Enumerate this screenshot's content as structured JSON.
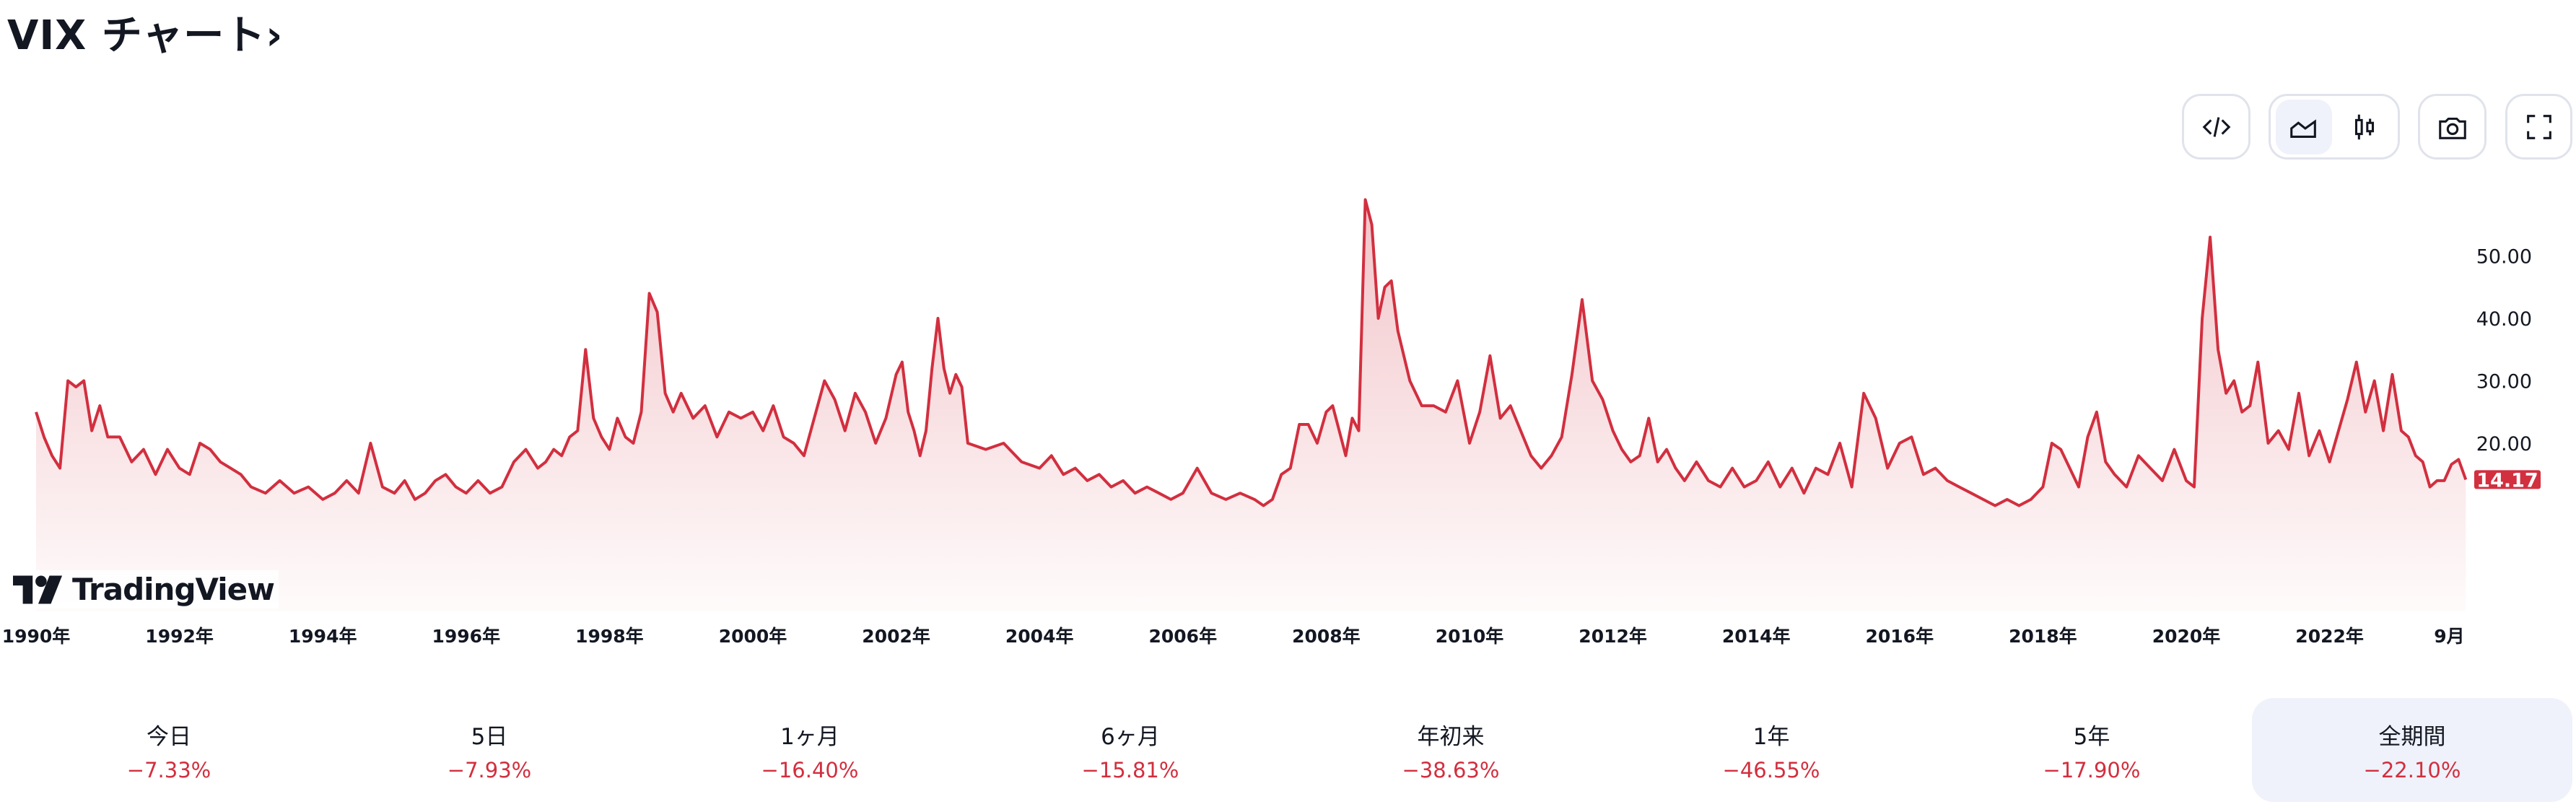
{
  "header": {
    "title": "VIX チャート›"
  },
  "toolbar": {
    "buttons": [
      {
        "name": "embed-code",
        "icon": "code-icon"
      },
      {
        "name": "area-chart",
        "icon": "area-chart-icon",
        "active": true
      },
      {
        "name": "candlestick-chart",
        "icon": "candlestick-icon"
      },
      {
        "name": "screenshot",
        "icon": "camera-icon"
      },
      {
        "name": "fullscreen",
        "icon": "fullscreen-icon"
      }
    ]
  },
  "logo": {
    "text": "TradingView"
  },
  "colors": {
    "line": "#d22f3f",
    "badge": "#d22f3f",
    "negative": "#d22f3f",
    "active_bg": "#eff2fa"
  },
  "chart_data": {
    "type": "area",
    "ylim": [
      0,
      60
    ],
    "yticks": [
      "20.00",
      "30.00",
      "40.00",
      "50.00"
    ],
    "ytick_values": [
      20,
      30,
      40,
      50
    ],
    "xticks": [
      {
        "label": "1990年",
        "t": 1990
      },
      {
        "label": "1992年",
        "t": 1992
      },
      {
        "label": "1994年",
        "t": 1994
      },
      {
        "label": "1996年",
        "t": 1996
      },
      {
        "label": "1998年",
        "t": 1998
      },
      {
        "label": "2000年",
        "t": 2000
      },
      {
        "label": "2002年",
        "t": 2002
      },
      {
        "label": "2004年",
        "t": 2004
      },
      {
        "label": "2006年",
        "t": 2006
      },
      {
        "label": "2008年",
        "t": 2008
      },
      {
        "label": "2010年",
        "t": 2010
      },
      {
        "label": "2012年",
        "t": 2012
      },
      {
        "label": "2014年",
        "t": 2014
      },
      {
        "label": "2016年",
        "t": 2016
      },
      {
        "label": "2018年",
        "t": 2018
      },
      {
        "label": "2020年",
        "t": 2020
      },
      {
        "label": "2022年",
        "t": 2022
      },
      {
        "label": "9月",
        "t": 2023.67
      }
    ],
    "last_value": "14.17",
    "values_by_year": {
      "1990": [
        25,
        21,
        18,
        16,
        30,
        29,
        30,
        22,
        26
      ],
      "1991": [
        21,
        21,
        17,
        19,
        15,
        19
      ],
      "1992": [
        16,
        15,
        20,
        19,
        17,
        16,
        15
      ],
      "1993": [
        13,
        12,
        14,
        12,
        13
      ],
      "1994": [
        11,
        12,
        14,
        12,
        20,
        13
      ],
      "1995": [
        12,
        14,
        11,
        12,
        14,
        15,
        13
      ],
      "1996": [
        12,
        14,
        12,
        13,
        17,
        19
      ],
      "1997": [
        16,
        17,
        19,
        18,
        21,
        22,
        35,
        24,
        21
      ],
      "1998": [
        19,
        24,
        21,
        20,
        25,
        44,
        41,
        28,
        25
      ],
      "1999": [
        28,
        24,
        26,
        21,
        25,
        24
      ],
      "2000": [
        25,
        22,
        26,
        21,
        20,
        18,
        24
      ],
      "2001": [
        30,
        27,
        22,
        28,
        25,
        20,
        24
      ],
      "2002": [
        31,
        33,
        25,
        22,
        18,
        22,
        32,
        40,
        32,
        28,
        31,
        29
      ],
      "2003": [
        20,
        19,
        20,
        17
      ],
      "2004": [
        16,
        18,
        15,
        16,
        14,
        15
      ],
      "2005": [
        13,
        14,
        12,
        13,
        12,
        11
      ],
      "2006": [
        12,
        16,
        12,
        11,
        12
      ],
      "2007": [
        11,
        10,
        11,
        15,
        16,
        23,
        23,
        20
      ],
      "2008": [
        25,
        26,
        22,
        18,
        24,
        22,
        59,
        55,
        40,
        45,
        46
      ],
      "2009": [
        38,
        30,
        26,
        26,
        25,
        30
      ],
      "2010": [
        20,
        25,
        34,
        24,
        26,
        22,
        18
      ],
      "2011": [
        16,
        18,
        21,
        31,
        43,
        30,
        27
      ],
      "2012": [
        22,
        19,
        17,
        18,
        24,
        17,
        19,
        16
      ],
      "2013": [
        14,
        17,
        14,
        13,
        16,
        13
      ],
      "2014": [
        14,
        17,
        13,
        16,
        12,
        16
      ],
      "2015": [
        15,
        20,
        13,
        28,
        24,
        16
      ],
      "2016": [
        20,
        21,
        15,
        16,
        14,
        13
      ],
      "2017": [
        12,
        11,
        10,
        11,
        10,
        11
      ],
      "2018": [
        13,
        20,
        19,
        16,
        13,
        21,
        25,
        17
      ],
      "2019": [
        15,
        13,
        18,
        16,
        14,
        19
      ],
      "2020": [
        14,
        13,
        40,
        53,
        35,
        28,
        30,
        25,
        26
      ],
      "2021": [
        33,
        20,
        22,
        19,
        28,
        18,
        22
      ],
      "2022": [
        17,
        22,
        27,
        33,
        25,
        30,
        22,
        31
      ],
      "2023": [
        22,
        21,
        18,
        17,
        13,
        14,
        14,
        16.6,
        17.4,
        14.17
      ]
    },
    "x_end": 2023.9
  },
  "stats": [
    {
      "label": "今日",
      "value": "−7.33%"
    },
    {
      "label": "5日",
      "value": "−7.93%"
    },
    {
      "label": "1ヶ月",
      "value": "−16.40%"
    },
    {
      "label": "6ヶ月",
      "value": "−15.81%"
    },
    {
      "label": "年初来",
      "value": "−38.63%"
    },
    {
      "label": "1年",
      "value": "−46.55%"
    },
    {
      "label": "5年",
      "value": "−17.90%"
    },
    {
      "label": "全期間",
      "value": "−22.10%",
      "active": true
    }
  ]
}
